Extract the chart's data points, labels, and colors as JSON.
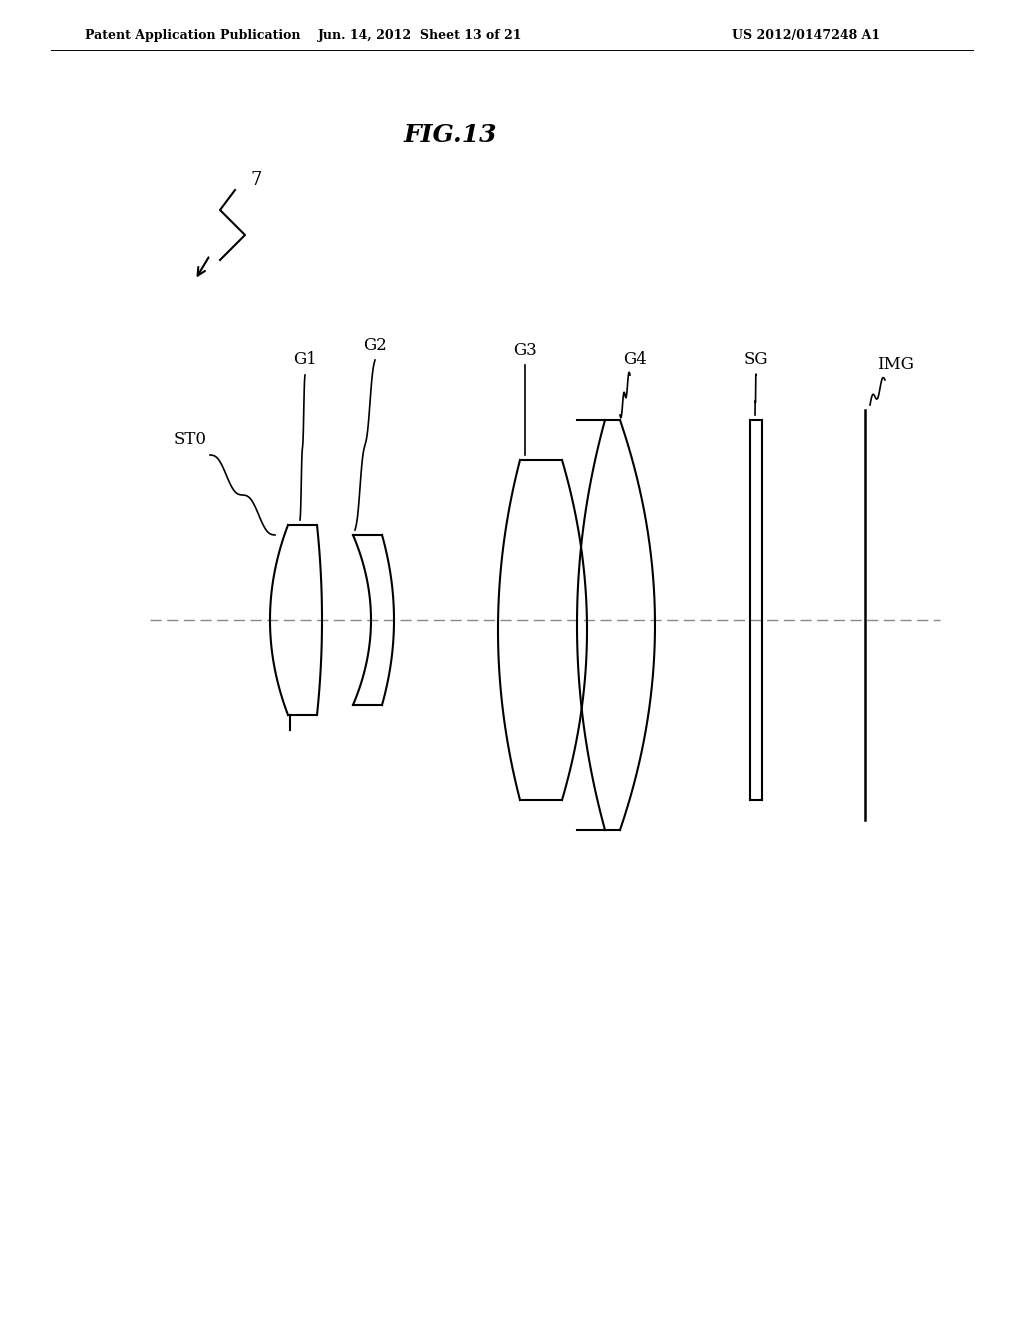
{
  "title": "FIG.13",
  "header_left": "Patent Application Publication",
  "header_center": "Jun. 14, 2012  Sheet 13 of 21",
  "header_right": "US 2012/0147248 A1",
  "background_color": "#ffffff",
  "line_color": "#000000",
  "axis_color": "#555555",
  "labels": {
    "arrow_label": "7",
    "G1": "G1",
    "G2": "G2",
    "G3": "G3",
    "G4": "G4",
    "SG": "SG",
    "IMG": "IMG",
    "ST0": "ST0"
  }
}
